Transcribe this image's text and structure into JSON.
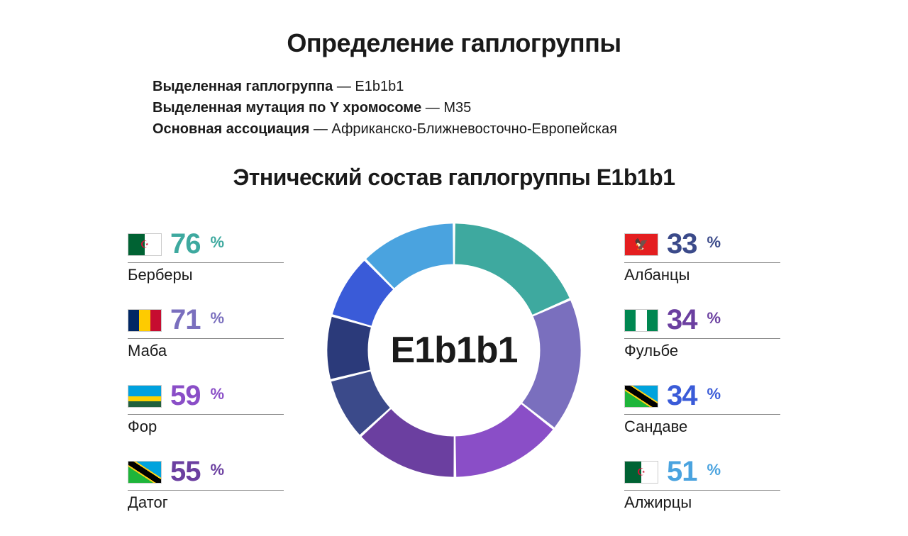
{
  "title": "Определение гаплогруппы",
  "info": {
    "line1_bold": "Выделенная гаплогруппа",
    "line1_val": " — E1b1b1",
    "line2_bold": "Выделенная мутация по Y хромосоме",
    "line2_val": " — M35",
    "line3_bold": "Основная ассоциация",
    "line3_val": " — Африканско-Ближневосточно-Европейская"
  },
  "subtitle": "Этнический состав гаплогруппы E1b1b1",
  "donut": {
    "center_label": "E1b1b1",
    "type": "donut",
    "background_color": "#ffffff",
    "inner_radius_ratio": 0.68,
    "segments": [
      {
        "color": "#3ea99f",
        "value": 76
      },
      {
        "color": "#7a6fbe",
        "value": 71
      },
      {
        "color": "#8a4ec7",
        "value": 59
      },
      {
        "color": "#6b3fa0",
        "value": 55
      },
      {
        "color": "#3b4a8a",
        "value": 33
      },
      {
        "color": "#2b3a7a",
        "value": 34
      },
      {
        "color": "#3a5bd8",
        "value": 34
      },
      {
        "color": "#4aa3df",
        "value": 51
      }
    ]
  },
  "left_items": [
    {
      "pct": "76",
      "label": "Берберы",
      "pct_color": "#3ea99f",
      "flag": "algeria"
    },
    {
      "pct": "71",
      "label": "Маба",
      "pct_color": "#7a6fbe",
      "flag": "chad"
    },
    {
      "pct": "59",
      "label": "Фор",
      "pct_color": "#8a4ec7",
      "flag": "rwanda"
    },
    {
      "pct": "55",
      "label": "Датог",
      "pct_color": "#6b3fa0",
      "flag": "tanzania"
    }
  ],
  "right_items": [
    {
      "pct": "33",
      "label": "Албанцы",
      "pct_color": "#3b4a8a",
      "flag": "albania"
    },
    {
      "pct": "34",
      "label": "Фульбе",
      "pct_color": "#6b3fa0",
      "flag": "nigeria"
    },
    {
      "pct": "34",
      "label": "Сандаве",
      "pct_color": "#3a5bd8",
      "flag": "tanzania"
    },
    {
      "pct": "51",
      "label": "Алжирцы",
      "pct_color": "#4aa3df",
      "flag": "algeria"
    }
  ],
  "typography": {
    "title_fontsize": 36,
    "subtitle_fontsize": 32,
    "info_fontsize": 20,
    "pct_fontsize": 40,
    "label_fontsize": 22,
    "center_fontsize": 52
  }
}
